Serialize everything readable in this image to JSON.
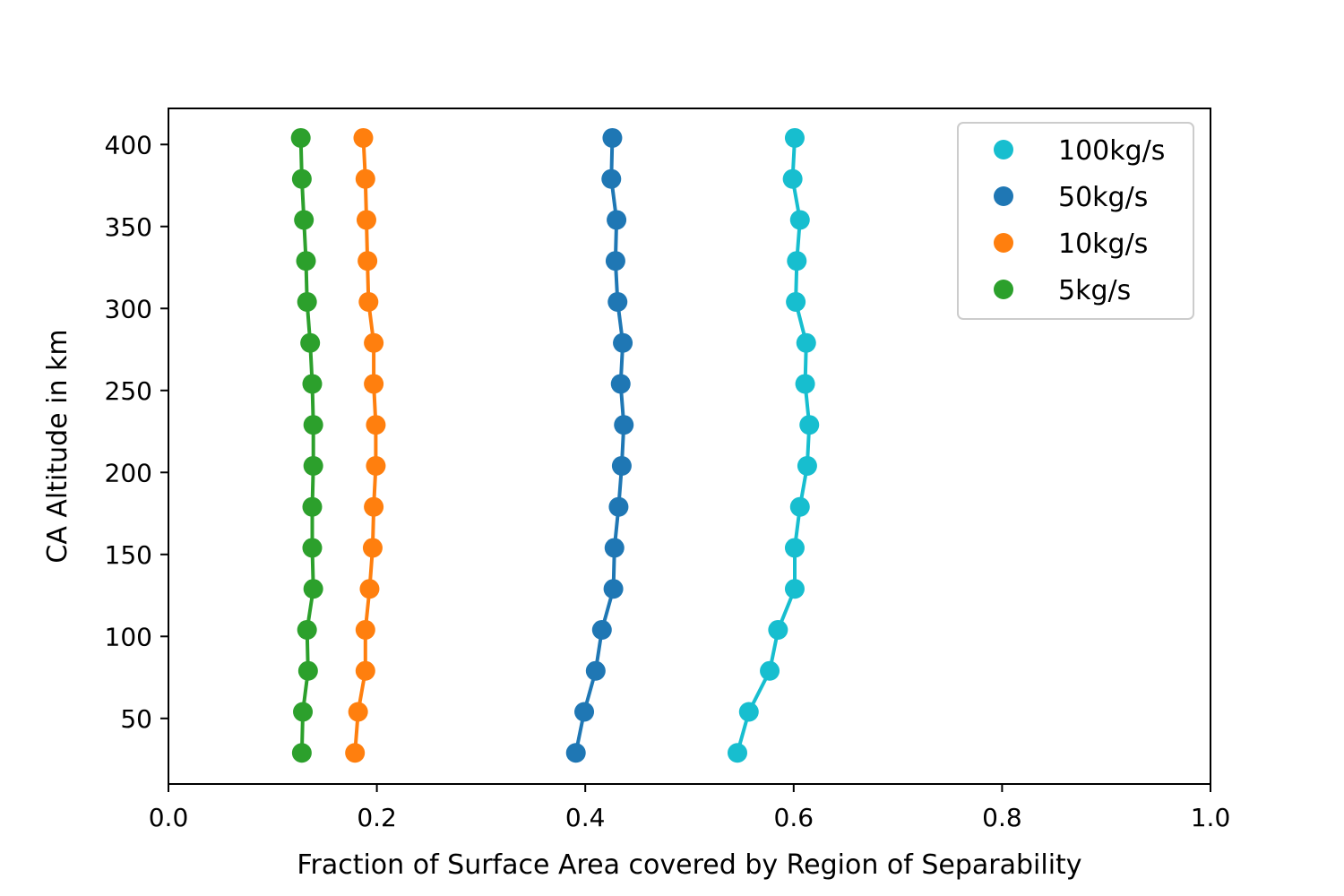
{
  "chart_data": {
    "type": "line",
    "xlabel": "Fraction of Surface Area covered by Region of Separability",
    "ylabel": "CA Altitude in km",
    "xlim": [
      0.0,
      1.0
    ],
    "ylim": [
      10,
      422
    ],
    "x_ticks": [
      "0.0",
      "0.2",
      "0.4",
      "0.6",
      "0.8",
      "1.0"
    ],
    "y_ticks": [
      "50",
      "100",
      "150",
      "200",
      "250",
      "300",
      "350",
      "400"
    ],
    "grid": false,
    "legend_position": "top-right",
    "y": [
      29,
      54,
      79,
      104,
      129,
      154,
      179,
      204,
      229,
      254,
      279,
      304,
      329,
      354,
      379,
      404
    ],
    "series": [
      {
        "name": "100kg/s",
        "color": "#17becf",
        "x": [
          0.546,
          0.557,
          0.577,
          0.585,
          0.601,
          0.601,
          0.606,
          0.613,
          0.615,
          0.611,
          0.612,
          0.602,
          0.603,
          0.606,
          0.599,
          0.601
        ]
      },
      {
        "name": "50kg/s",
        "color": "#1f77b4",
        "x": [
          0.391,
          0.399,
          0.41,
          0.416,
          0.427,
          0.428,
          0.432,
          0.435,
          0.437,
          0.434,
          0.436,
          0.431,
          0.429,
          0.43,
          0.425,
          0.426
        ]
      },
      {
        "name": "10kg/s",
        "color": "#ff7f0e",
        "x": [
          0.179,
          0.182,
          0.189,
          0.189,
          0.193,
          0.196,
          0.197,
          0.199,
          0.199,
          0.197,
          0.197,
          0.192,
          0.191,
          0.19,
          0.189,
          0.187
        ]
      },
      {
        "name": "5kg/s",
        "color": "#2ca02c",
        "x": [
          0.128,
          0.129,
          0.134,
          0.133,
          0.139,
          0.138,
          0.138,
          0.139,
          0.139,
          0.138,
          0.136,
          0.133,
          0.132,
          0.13,
          0.128,
          0.127
        ]
      }
    ]
  }
}
